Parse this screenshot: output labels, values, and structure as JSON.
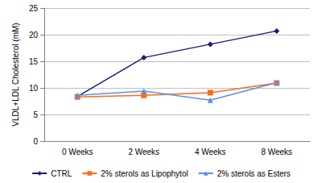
{
  "chart_data": {
    "type": "line",
    "y_label": "VLDL+LDL Cholesterol (mM)",
    "categories": [
      "0 Weeks",
      "2 Weeks",
      "4 Weeks",
      "8 Weeks"
    ],
    "series": [
      {
        "name": "CTRL",
        "color": "#1a1a80",
        "marker": "diamond",
        "values": [
          8.4,
          15.7,
          18.2,
          20.7
        ]
      },
      {
        "name": "2% sterols as Lipophytol",
        "color": "#ff6a13",
        "marker": "rect",
        "values": [
          8.3,
          8.6,
          9.1,
          10.9
        ]
      },
      {
        "name": "2% sterols as Esters",
        "color": "#5b8ff0",
        "marker": "triangle",
        "values": [
          8.6,
          9.4,
          7.7,
          11.0
        ]
      }
    ],
    "ylim": [
      0,
      25
    ],
    "yticks": [
      0,
      5,
      10,
      15,
      20,
      25
    ],
    "grid": true,
    "legend": "bottom"
  }
}
